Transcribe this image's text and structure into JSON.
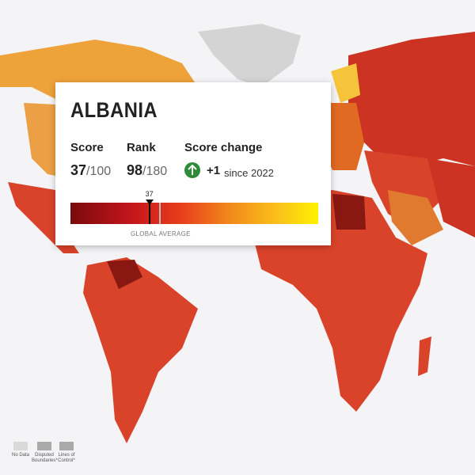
{
  "tooltip": {
    "country": "ALBANIA",
    "score": {
      "label": "Score",
      "value": 37,
      "max": "/100"
    },
    "rank": {
      "label": "Rank",
      "value": 98,
      "max": "/180"
    },
    "change": {
      "label": "Score change",
      "value": "+1",
      "since": "since 2022"
    },
    "average_label": "GLOBAL AVERAGE"
  },
  "legend": [
    "No Data",
    "Disputed Boundaries*",
    "Lines of Control*"
  ]
}
